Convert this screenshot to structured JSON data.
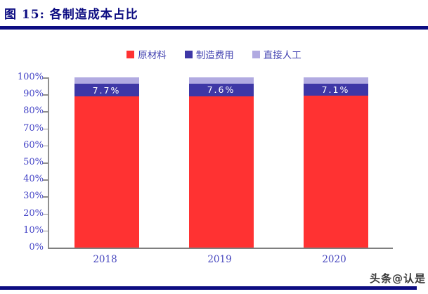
{
  "header": {
    "title": "图 15: 各制造成本占比"
  },
  "footer": {
    "watermark": "头条@认是"
  },
  "colors": {
    "accent_navy": "#0D0D82",
    "axis_text": "#4343C6",
    "legend_text": "#4040B0",
    "axis_line": "#8F8F8F",
    "bar_label_text": "#FFFFFF"
  },
  "chart_data": {
    "type": "bar",
    "stacked": true,
    "title": "各制造成本占比",
    "figure_label": "图 15",
    "categories": [
      "2018",
      "2019",
      "2020"
    ],
    "series": [
      {
        "name": "原材料",
        "color": "#FF3232",
        "values": [
          88.7,
          88.8,
          89.2
        ]
      },
      {
        "name": "制造费用",
        "color": "#3E37A6",
        "values": [
          7.7,
          7.6,
          7.1
        ],
        "data_labels": [
          "7.7%",
          "7.6%",
          "7.1%"
        ]
      },
      {
        "name": "直接人工",
        "color": "#B1AAE1",
        "values": [
          3.6,
          3.6,
          3.7
        ]
      }
    ],
    "ylim": [
      0,
      100
    ],
    "yticks": [
      0,
      10,
      20,
      30,
      40,
      50,
      60,
      70,
      80,
      90,
      100
    ],
    "ytick_labels": [
      "0%",
      "10%",
      "20%",
      "30%",
      "40%",
      "50%",
      "60%",
      "70%",
      "80%",
      "90%",
      "100%"
    ],
    "xlabel": "",
    "ylabel": "",
    "legend_position": "top-center",
    "grid": false
  }
}
